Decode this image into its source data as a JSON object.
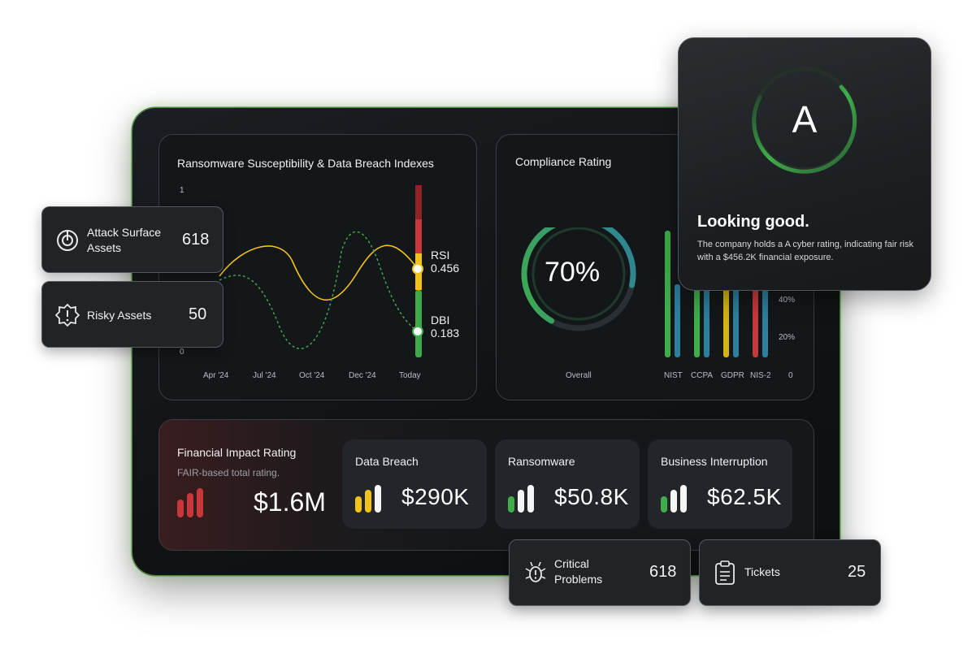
{
  "ransomware_panel": {
    "title": "Ransomware Susceptibility & Data Breach Indexes",
    "y_ticks": [
      "1",
      "0"
    ],
    "x_ticks": [
      "Apr '24",
      "Jul '24",
      "Oct '24",
      "Dec '24",
      "Today"
    ],
    "rsi_label": "RSI",
    "rsi_value": "0.456",
    "dbi_label": "DBI",
    "dbi_value": "0.183"
  },
  "compliance_panel": {
    "title": "Compliance Rating",
    "overall_value": "70%",
    "overall_label": "Overall",
    "overall_fraction": 0.7,
    "frameworks": [
      "NIST",
      "CCPA",
      "GDPR",
      "NIS-2"
    ],
    "y_ticks": [
      "40%",
      "20%",
      "0"
    ]
  },
  "financial_panel": {
    "title": "Financial Impact Rating",
    "subtitle": "FAIR-based total rating.",
    "total": "$1.6M",
    "cards": [
      {
        "label": "Data Breach",
        "amount": "$290K"
      },
      {
        "label": "Ransomware",
        "amount": "$50.8K"
      },
      {
        "label": "Business Interruption",
        "amount": "$62.5K"
      }
    ]
  },
  "floating_cards": {
    "attack_surface": {
      "label_line1": "Attack Surface",
      "label_line2": "Assets",
      "value": "618"
    },
    "risky_assets": {
      "label": "Risky Assets",
      "value": "50"
    },
    "critical_problems": {
      "label_line1": "Critical",
      "label_line2": "Problems",
      "value": "618"
    },
    "tickets": {
      "label": "Tickets",
      "value": "25"
    }
  },
  "rating_popup": {
    "grade": "A",
    "headline": "Looking good.",
    "body": "The company holds a A cyber rating, indicating fair risk with a $456.2K financial exposure."
  },
  "colors": {
    "green": "#3fae4a",
    "yellow": "#f1c40f",
    "red": "#d63a3a",
    "teal": "#2d7f9c"
  }
}
